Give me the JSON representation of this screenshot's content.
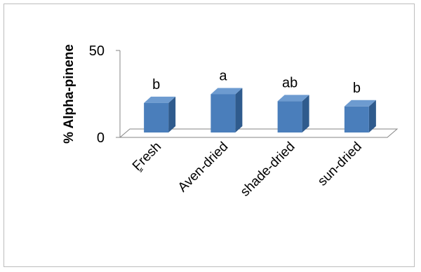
{
  "chart_data": {
    "type": "bar",
    "title": "",
    "xlabel": "",
    "ylabel": "% Alpha-pinene",
    "categories": [
      "ٍFresh",
      "Aven-dried",
      "shade-dried",
      "sun-dried"
    ],
    "values": [
      17,
      22,
      18,
      15
    ],
    "annotations": [
      "b",
      "a",
      "ab",
      "b"
    ],
    "ylim": [
      0,
      50
    ],
    "yticks": [
      "0",
      "50"
    ],
    "grid": false,
    "legend": "none",
    "style": "3d-column",
    "colors": {
      "front": "#4a7ebb",
      "side": "#2f5b8d",
      "top": "#6d9bd0"
    }
  }
}
